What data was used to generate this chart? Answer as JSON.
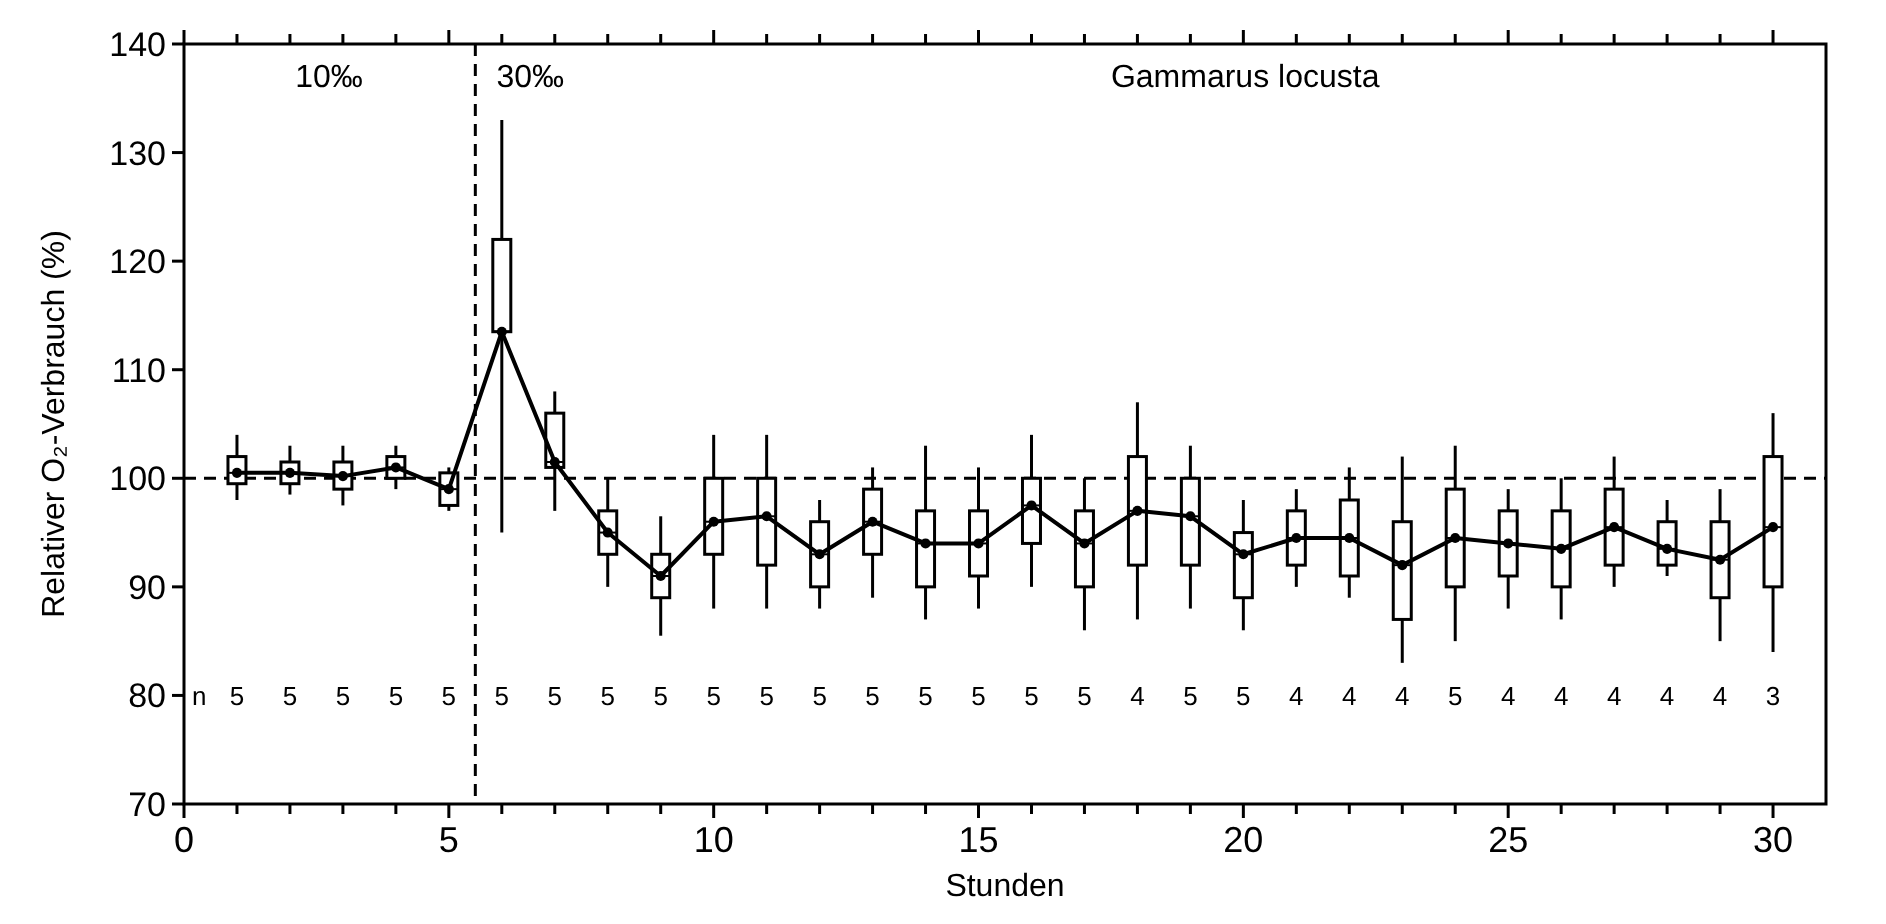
{
  "chart_data": {
    "type": "line",
    "xlabel": "Stunden",
    "ylabel": "Relativer O₂-Verbrauch (%)",
    "xlim": [
      0,
      31
    ],
    "ylim": [
      70,
      140
    ],
    "xticks": [
      0,
      {
        "value": 1,
        "label": null
      },
      {
        "value": 2,
        "label": null
      },
      {
        "value": 3,
        "label": null
      },
      {
        "value": 4,
        "label": null
      },
      5,
      {
        "value": 6,
        "label": null
      },
      {
        "value": 7,
        "label": null
      },
      {
        "value": 8,
        "label": null
      },
      {
        "value": 9,
        "label": null
      },
      10,
      {
        "value": 11,
        "label": null
      },
      {
        "value": 12,
        "label": null
      },
      {
        "value": 13,
        "label": null
      },
      {
        "value": 14,
        "label": null
      },
      15,
      {
        "value": 16,
        "label": null
      },
      {
        "value": 17,
        "label": null
      },
      {
        "value": 18,
        "label": null
      },
      {
        "value": 19,
        "label": null
      },
      20,
      {
        "value": 21,
        "label": null
      },
      {
        "value": 22,
        "label": null
      },
      {
        "value": 23,
        "label": null
      },
      {
        "value": 24,
        "label": null
      },
      25,
      {
        "value": 26,
        "label": null
      },
      {
        "value": 27,
        "label": null
      },
      {
        "value": 28,
        "label": null
      },
      {
        "value": 29,
        "label": null
      },
      30
    ],
    "yticks": [
      70,
      80,
      90,
      100,
      110,
      120,
      130,
      140
    ],
    "grid": false,
    "series": [
      {
        "type": "box",
        "color": "#000000",
        "x": [
          1,
          2,
          3,
          4,
          5,
          6,
          7,
          8,
          9,
          10,
          11,
          12,
          13,
          14,
          15,
          16,
          17,
          18,
          19,
          20,
          21,
          22,
          23,
          24,
          25,
          26,
          27,
          28,
          29,
          30
        ],
        "boxes": [
          {
            "low": 98,
            "q1": 99.5,
            "median": 100.5,
            "q3": 102,
            "high": 104
          },
          {
            "low": 98.5,
            "q1": 99.5,
            "median": 100.5,
            "q3": 101.5,
            "high": 103
          },
          {
            "low": 97.5,
            "q1": 99,
            "median": 100.2,
            "q3": 101.5,
            "high": 103
          },
          {
            "low": 99,
            "q1": 100,
            "median": 101,
            "q3": 102,
            "high": 103
          },
          {
            "low": 97,
            "q1": 97.5,
            "median": 99,
            "q3": 100.5,
            "high": 101
          },
          {
            "low": 95,
            "q1": 113.5,
            "median": 113.5,
            "q3": 122,
            "high": 133
          },
          {
            "low": 97,
            "q1": 101,
            "median": 101.5,
            "q3": 106,
            "high": 108
          },
          {
            "low": 90,
            "q1": 93,
            "median": 95,
            "q3": 97,
            "high": 100
          },
          {
            "low": 85.5,
            "q1": 89,
            "median": 91,
            "q3": 93,
            "high": 96.5
          },
          {
            "low": 88,
            "q1": 93,
            "median": 96,
            "q3": 100,
            "high": 104
          },
          {
            "low": 88,
            "q1": 92,
            "median": 96.5,
            "q3": 100,
            "high": 104
          },
          {
            "low": 88,
            "q1": 90,
            "median": 93,
            "q3": 96,
            "high": 98
          },
          {
            "low": 89,
            "q1": 93,
            "median": 96,
            "q3": 99,
            "high": 101
          },
          {
            "low": 87,
            "q1": 90,
            "median": 94,
            "q3": 97,
            "high": 103
          },
          {
            "low": 88,
            "q1": 91,
            "median": 94,
            "q3": 97,
            "high": 101
          },
          {
            "low": 90,
            "q1": 94,
            "median": 97.5,
            "q3": 100,
            "high": 104
          },
          {
            "low": 86,
            "q1": 90,
            "median": 94,
            "q3": 97,
            "high": 100
          },
          {
            "low": 87,
            "q1": 92,
            "median": 97,
            "q3": 102,
            "high": 107
          },
          {
            "low": 88,
            "q1": 92,
            "median": 96.5,
            "q3": 100,
            "high": 103
          },
          {
            "low": 86,
            "q1": 89,
            "median": 93,
            "q3": 95,
            "high": 98
          },
          {
            "low": 90,
            "q1": 92,
            "median": 94.5,
            "q3": 97,
            "high": 99
          },
          {
            "low": 89,
            "q1": 91,
            "median": 94.5,
            "q3": 98,
            "high": 101
          },
          {
            "low": 83,
            "q1": 87,
            "median": 92,
            "q3": 96,
            "high": 102
          },
          {
            "low": 85,
            "q1": 90,
            "median": 94.5,
            "q3": 99,
            "high": 103
          },
          {
            "low": 88,
            "q1": 91,
            "median": 94,
            "q3": 97,
            "high": 99
          },
          {
            "low": 87,
            "q1": 90,
            "median": 93.5,
            "q3": 97,
            "high": 100
          },
          {
            "low": 90,
            "q1": 92,
            "median": 95.5,
            "q3": 99,
            "high": 102
          },
          {
            "low": 91,
            "q1": 92,
            "median": 93.5,
            "q3": 96,
            "high": 98
          },
          {
            "low": 85,
            "q1": 89,
            "median": 92.5,
            "q3": 96,
            "high": 99
          },
          {
            "low": 84,
            "q1": 90,
            "median": 95.5,
            "q3": 102,
            "high": 106
          }
        ]
      },
      {
        "color": "#000000",
        "marker": "circle",
        "line_style": "solid",
        "x": [
          1,
          2,
          3,
          4,
          5,
          6,
          7,
          8,
          9,
          10,
          11,
          12,
          13,
          14,
          15,
          16,
          17,
          18,
          19,
          20,
          21,
          22,
          23,
          24,
          25,
          26,
          27,
          28,
          29,
          30
        ],
        "values": [
          100.5,
          100.5,
          100.2,
          101,
          99,
          113.5,
          101.5,
          95,
          91,
          96,
          96.5,
          93,
          96,
          94,
          94,
          97.5,
          94,
          97,
          96.5,
          93,
          94.5,
          94.5,
          92,
          94.5,
          94,
          93.5,
          95.5,
          93.5,
          92.5,
          95.5
        ]
      }
    ],
    "ref_lines": [
      {
        "axis": "x",
        "value": 5.5,
        "line_style": "dashed",
        "color": "#000000"
      },
      {
        "axis": "y",
        "value": 100,
        "line_style": "dashed",
        "color": "#000000"
      }
    ],
    "annotations": [
      "10‰",
      "30‰",
      "Gammarus locusta",
      "n",
      "5",
      "5",
      "5",
      "5",
      "5",
      "5",
      "5",
      "5",
      "5",
      "5",
      "5",
      "5",
      "5",
      "5",
      "5",
      "5",
      "5",
      "4",
      "5",
      "5",
      "4",
      "4",
      "4",
      "5",
      "4",
      "4",
      "4",
      "4",
      "4",
      "3"
    ]
  }
}
